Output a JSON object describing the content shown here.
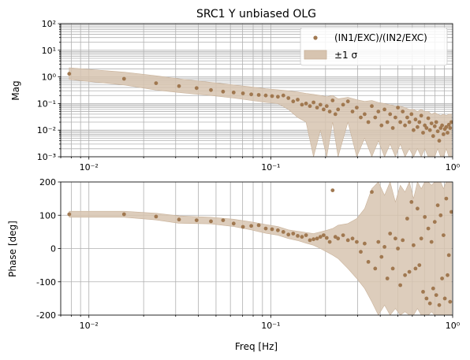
{
  "chart_data": [
    {
      "type": "scatter",
      "title": "SRC1 Y unbiased OLG",
      "xlabel": "",
      "ylabel": "Mag",
      "xscale": "log",
      "yscale": "log",
      "xlim": [
        0.007,
        1.0
      ],
      "ylim": [
        0.001,
        100
      ],
      "grid": true,
      "legend_position": "top-right",
      "x_tick_labels": [
        "10⁻²",
        "10⁻¹",
        "10⁰"
      ],
      "y_tick_labels": [
        "10⁻³",
        "10⁻²",
        "10⁻¹",
        "10⁰",
        "10¹",
        "10²"
      ],
      "series": [
        {
          "name": "(IN1/EXC)/(IN2/EXC)",
          "color": "#a07850",
          "x": [
            0.0078,
            0.0156,
            0.0234,
            0.0313,
            0.0391,
            0.0469,
            0.0547,
            0.0625,
            0.0703,
            0.0781,
            0.0859,
            0.0938,
            0.1016,
            0.1094,
            0.1172,
            0.125,
            0.1328,
            0.1406,
            0.1484,
            0.1563,
            0.1641,
            0.1719,
            0.1797,
            0.1875,
            0.1953,
            0.2031,
            0.2109,
            0.2188,
            0.2266,
            0.2344,
            0.25,
            0.2656,
            0.2813,
            0.2969,
            0.3125,
            0.3281,
            0.3438,
            0.3594,
            0.375,
            0.3906,
            0.4063,
            0.4219,
            0.4375,
            0.4531,
            0.4688,
            0.4844,
            0.5,
            0.5156,
            0.5313,
            0.5469,
            0.5625,
            0.5781,
            0.5938,
            0.6094,
            0.625,
            0.6406,
            0.6563,
            0.6719,
            0.6875,
            0.7031,
            0.7188,
            0.7344,
            0.75,
            0.7656,
            0.7813,
            0.7969,
            0.8125,
            0.8281,
            0.8438,
            0.8594,
            0.875,
            0.8906,
            0.9063,
            0.9219,
            0.9375,
            0.9531,
            0.9688,
            0.9844
          ],
          "y": [
            1.3,
            0.85,
            0.58,
            0.45,
            0.38,
            0.32,
            0.28,
            0.26,
            0.24,
            0.22,
            0.21,
            0.2,
            0.19,
            0.18,
            0.2,
            0.16,
            0.12,
            0.14,
            0.09,
            0.1,
            0.08,
            0.11,
            0.07,
            0.09,
            0.06,
            0.08,
            0.05,
            0.13,
            0.04,
            0.06,
            0.09,
            0.12,
            0.05,
            0.07,
            0.03,
            0.04,
            0.02,
            0.08,
            0.03,
            0.05,
            0.015,
            0.06,
            0.02,
            0.04,
            0.012,
            0.03,
            0.07,
            0.02,
            0.05,
            0.015,
            0.03,
            0.02,
            0.04,
            0.01,
            0.025,
            0.013,
            0.02,
            0.035,
            0.008,
            0.015,
            0.012,
            0.028,
            0.01,
            0.018,
            0.006,
            0.014,
            0.02,
            0.009,
            0.004,
            0.012,
            0.015,
            0.007,
            0.011,
            0.013,
            0.008,
            0.016,
            0.012,
            0.02
          ]
        },
        {
          "name": "±1 σ",
          "color": "#d7c4b0",
          "x": [
            0.0078,
            0.0156,
            0.0234,
            0.0313,
            0.0469,
            0.0625,
            0.0781,
            0.0938,
            0.1094,
            0.125,
            0.1406,
            0.1563,
            0.1719,
            0.1875,
            0.2031,
            0.2188,
            0.2344,
            0.2656,
            0.2969,
            0.3281,
            0.3594,
            0.3906,
            0.4219,
            0.4531,
            0.4844,
            0.5156,
            0.5469,
            0.5781,
            0.6094,
            0.6406,
            0.6719,
            0.7031,
            0.7344,
            0.7656,
            0.7969,
            0.8281,
            0.8594,
            0.8906,
            0.9219,
            0.9531,
            0.9844
          ],
          "upper": [
            2.2,
            1.5,
            1.1,
            0.85,
            0.62,
            0.5,
            0.42,
            0.36,
            0.33,
            0.3,
            0.27,
            0.24,
            0.22,
            0.2,
            0.18,
            0.2,
            0.15,
            0.17,
            0.14,
            0.12,
            0.13,
            0.11,
            0.1,
            0.09,
            0.08,
            0.08,
            0.07,
            0.06,
            0.06,
            0.05,
            0.06,
            0.05,
            0.05,
            0.04,
            0.045,
            0.04,
            0.035,
            0.04,
            0.035,
            0.04,
            0.04
          ],
          "lower": [
            0.8,
            0.5,
            0.32,
            0.26,
            0.2,
            0.16,
            0.13,
            0.11,
            0.1,
            0.06,
            0.03,
            0.02,
            0.001,
            0.01,
            0.001,
            0.02,
            0.001,
            0.02,
            0.001,
            0.005,
            0.001,
            0.004,
            0.001,
            0.003,
            0.001,
            0.003,
            0.001,
            0.002,
            0.001,
            0.002,
            0.001,
            0.002,
            0.001,
            0.001,
            0.001,
            0.002,
            0.001,
            0.001,
            0.002,
            0.001,
            0.001
          ]
        }
      ]
    },
    {
      "type": "scatter",
      "title": "",
      "xlabel": "Freq [Hz]",
      "ylabel": "Phase [deg]",
      "xscale": "log",
      "yscale": "linear",
      "xlim": [
        0.007,
        1.0
      ],
      "ylim": [
        -200,
        200
      ],
      "grid": true,
      "x_tick_labels": [
        "10⁻²",
        "10⁻¹",
        "10⁰"
      ],
      "y_ticks": [
        -200,
        -100,
        0,
        100,
        200
      ],
      "series": [
        {
          "name": "(IN1/EXC)/(IN2/EXC)",
          "color": "#a07850",
          "x": [
            0.0078,
            0.0156,
            0.0234,
            0.0313,
            0.0391,
            0.0469,
            0.0547,
            0.0625,
            0.0703,
            0.0781,
            0.0859,
            0.0938,
            0.1016,
            0.1094,
            0.1172,
            0.125,
            0.1328,
            0.1406,
            0.1484,
            0.1563,
            0.1641,
            0.1719,
            0.1797,
            0.1875,
            0.1953,
            0.2031,
            0.2109,
            0.2188,
            0.2266,
            0.2344,
            0.25,
            0.2656,
            0.2813,
            0.2969,
            0.3125,
            0.3281,
            0.3438,
            0.3594,
            0.375,
            0.3906,
            0.4063,
            0.4219,
            0.4375,
            0.4531,
            0.4688,
            0.4844,
            0.5,
            0.5156,
            0.5313,
            0.5469,
            0.5625,
            0.5781,
            0.5938,
            0.6094,
            0.625,
            0.6406,
            0.6563,
            0.6719,
            0.6875,
            0.7031,
            0.7188,
            0.7344,
            0.75,
            0.7656,
            0.7813,
            0.7969,
            0.8125,
            0.8281,
            0.8438,
            0.8594,
            0.875,
            0.8906,
            0.9063,
            0.9219,
            0.9375,
            0.9531,
            0.9688,
            0.9844
          ],
          "y": [
            103,
            103,
            96,
            87,
            85,
            82,
            85,
            75,
            65,
            68,
            70,
            60,
            58,
            55,
            50,
            42,
            45,
            38,
            35,
            40,
            25,
            28,
            30,
            35,
            40,
            32,
            20,
            175,
            35,
            30,
            40,
            25,
            30,
            20,
            -10,
            15,
            -40,
            170,
            -60,
            20,
            -25,
            5,
            -90,
            45,
            -60,
            30,
            0,
            -110,
            25,
            -80,
            90,
            -70,
            140,
            10,
            -60,
            120,
            -50,
            30,
            -130,
            95,
            -150,
            60,
            -165,
            20,
            -120,
            80,
            -140,
            130,
            -170,
            100,
            -90,
            40,
            -150,
            150,
            -80,
            -20,
            -160,
            110
          ]
        },
        {
          "name": "±1 σ",
          "color": "#d7c4b0",
          "x": [
            0.0078,
            0.0156,
            0.0234,
            0.0313,
            0.0469,
            0.0625,
            0.0781,
            0.0938,
            0.1094,
            0.125,
            0.1406,
            0.1563,
            0.1719,
            0.1875,
            0.2031,
            0.2188,
            0.2344,
            0.2656,
            0.2969,
            0.3281,
            0.3594,
            0.3906,
            0.4219,
            0.4531,
            0.4844,
            0.5156,
            0.5469,
            0.5781,
            0.6094,
            0.6406,
            0.6719,
            0.7031,
            0.7344,
            0.7656,
            0.7969,
            0.8281,
            0.8594,
            0.8906,
            0.9219,
            0.9531,
            0.9844
          ],
          "upper": [
            112,
            112,
            106,
            98,
            94,
            88,
            80,
            72,
            66,
            56,
            52,
            48,
            45,
            50,
            55,
            60,
            70,
            75,
            90,
            120,
            180,
            200,
            160,
            200,
            140,
            190,
            170,
            200,
            150,
            200,
            180,
            200,
            200,
            190,
            200,
            200,
            200,
            180,
            200,
            200,
            200
          ],
          "lower": [
            94,
            94,
            86,
            76,
            74,
            66,
            56,
            46,
            40,
            30,
            24,
            16,
            10,
            0,
            -10,
            -20,
            -30,
            -60,
            -90,
            -120,
            -160,
            -200,
            -170,
            -200,
            -180,
            -200,
            -190,
            -200,
            -200,
            -180,
            -200,
            -200,
            -200,
            -190,
            -200,
            -200,
            -200,
            -200,
            -200,
            -200,
            -200
          ]
        }
      ]
    }
  ]
}
